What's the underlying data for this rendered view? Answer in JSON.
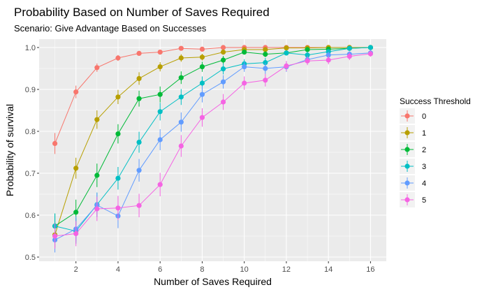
{
  "chart_data": {
    "type": "line",
    "title": "Probability Based on Number of Saves Required",
    "subtitle": "Scenario: Give Advantage Based on Successes",
    "xlabel": "Number of Saves Required",
    "ylabel": "Probability of survival",
    "xlim": [
      0.25,
      16.75
    ],
    "ylim": [
      0.49,
      1.02
    ],
    "x_ticks": [
      2,
      4,
      6,
      8,
      10,
      12,
      14,
      16
    ],
    "y_ticks": [
      0.5,
      0.6,
      0.7,
      0.8,
      0.9,
      1.0
    ],
    "y_tick_labels": [
      "0.5",
      "0.6",
      "0.7",
      "0.8",
      "0.9",
      "1.0"
    ],
    "legend_title": "Success Threshold",
    "legend_position": "right",
    "x": [
      1,
      2,
      3,
      4,
      5,
      6,
      7,
      8,
      9,
      10,
      11,
      12,
      13,
      14,
      15,
      16
    ],
    "series": [
      {
        "name": "0",
        "color": "#F8766D",
        "values": [
          0.771,
          0.894,
          0.952,
          0.975,
          0.986,
          0.989,
          0.998,
          0.996,
          1.0,
          1.0,
          1.0,
          1.0,
          1.0,
          1.0,
          1.0,
          1.0
        ],
        "errors": [
          0.025,
          0.015,
          0.01,
          0.007,
          0.005,
          0.005,
          0.003,
          0.003,
          0.0,
          0.0,
          0.0,
          0.0,
          0.0,
          0.0,
          0.0,
          0.0
        ]
      },
      {
        "name": "1",
        "color": "#B79F00",
        "values": [
          0.553,
          0.712,
          0.828,
          0.882,
          0.926,
          0.954,
          0.975,
          0.977,
          0.989,
          0.995,
          0.995,
          0.999,
          0.999,
          1.0,
          1.0,
          1.0
        ],
        "errors": [
          0.03,
          0.025,
          0.022,
          0.017,
          0.015,
          0.011,
          0.009,
          0.008,
          0.006,
          0.004,
          0.004,
          0.002,
          0.002,
          0.0,
          0.0,
          0.0
        ]
      },
      {
        "name": "2",
        "color": "#00BA38",
        "values": [
          0.574,
          0.607,
          0.695,
          0.794,
          0.878,
          0.888,
          0.928,
          0.954,
          0.97,
          0.989,
          0.984,
          0.987,
          0.995,
          0.996,
          0.998,
          1.0
        ],
        "errors": [
          0.03,
          0.03,
          0.028,
          0.023,
          0.019,
          0.019,
          0.015,
          0.012,
          0.01,
          0.006,
          0.007,
          0.006,
          0.004,
          0.004,
          0.003,
          0.0
        ]
      },
      {
        "name": "3",
        "color": "#00BFC4",
        "values": [
          0.574,
          0.562,
          0.625,
          0.688,
          0.774,
          0.847,
          0.882,
          0.915,
          0.949,
          0.961,
          0.964,
          0.987,
          0.982,
          0.99,
          0.998,
          1.0
        ],
        "errors": [
          0.03,
          0.03,
          0.029,
          0.027,
          0.025,
          0.021,
          0.019,
          0.016,
          0.013,
          0.011,
          0.011,
          0.006,
          0.008,
          0.006,
          0.003,
          0.0
        ]
      },
      {
        "name": "4",
        "color": "#619CFF",
        "values": [
          0.541,
          0.567,
          0.624,
          0.598,
          0.707,
          0.78,
          0.822,
          0.888,
          0.918,
          0.954,
          0.95,
          0.954,
          0.971,
          0.982,
          0.984,
          0.987
        ],
        "errors": [
          0.03,
          0.03,
          0.029,
          0.029,
          0.027,
          0.025,
          0.023,
          0.019,
          0.016,
          0.012,
          0.013,
          0.012,
          0.01,
          0.008,
          0.007,
          0.007
        ]
      },
      {
        "name": "5",
        "color": "#F564E3",
        "values": [
          0.55,
          0.556,
          0.615,
          0.617,
          0.623,
          0.673,
          0.765,
          0.833,
          0.87,
          0.915,
          0.922,
          0.956,
          0.968,
          0.97,
          0.979,
          0.985
        ],
        "errors": [
          0.03,
          0.03,
          0.029,
          0.029,
          0.028,
          0.028,
          0.026,
          0.022,
          0.019,
          0.016,
          0.015,
          0.012,
          0.01,
          0.01,
          0.009,
          0.007
        ]
      }
    ]
  }
}
